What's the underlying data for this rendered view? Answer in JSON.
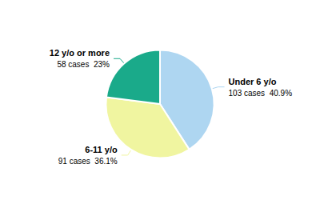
{
  "chart_data": {
    "type": "pie",
    "categories": [
      "Under 6 y/o",
      "6-11 y/o",
      "12 y/o or more"
    ],
    "values": [
      40.9,
      36.1,
      23.0
    ],
    "value_labels": [
      "103 cases  40.9%",
      "91 cases  36.1%",
      "58 cases  23%"
    ],
    "colors": [
      "#aed6f1",
      "#f0f5a0",
      "#1aaa8a"
    ],
    "data_labels": true,
    "legend": false
  }
}
